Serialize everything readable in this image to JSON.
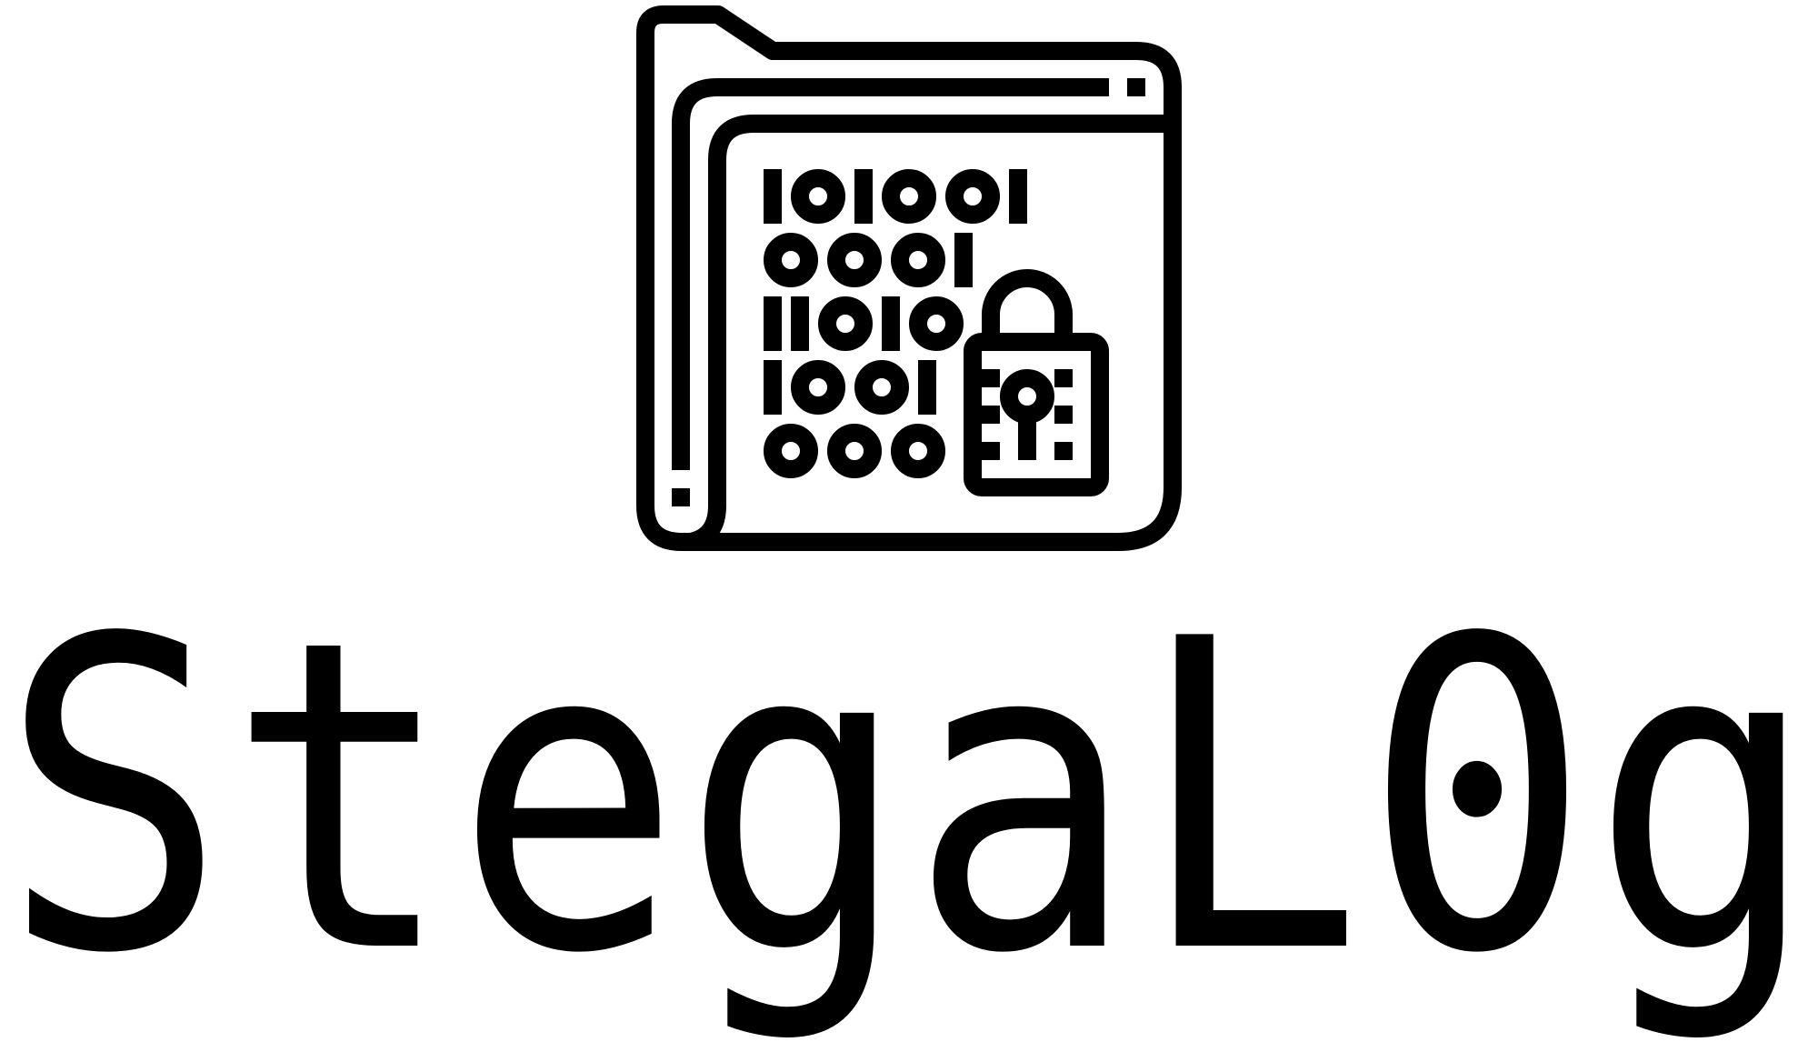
{
  "logo": {
    "text": "StegaL0g"
  }
}
